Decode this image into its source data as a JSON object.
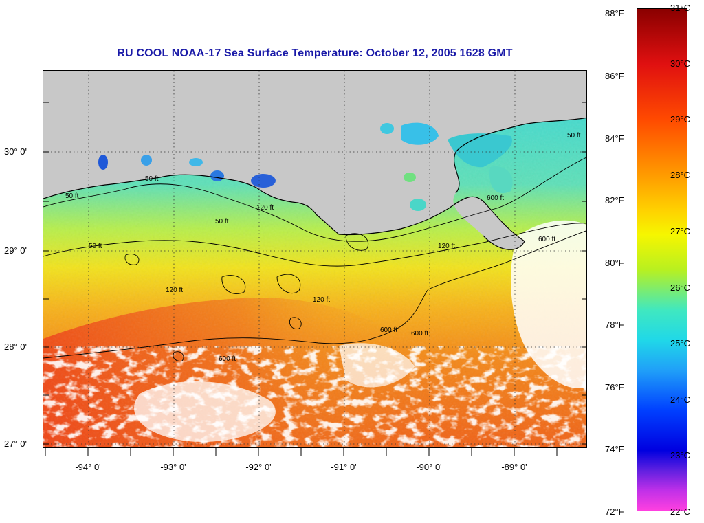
{
  "title": "RU COOL  NOAA-17  Sea Surface Temperature:  October 12, 2005 1628 GMT",
  "map": {
    "lat_labels": [
      "30° 0'",
      "29° 0'",
      "28° 0'",
      "27° 0'"
    ],
    "lon_labels": [
      "-94° 0'",
      "-93° 0'",
      "-92° 0'",
      "-91° 0'",
      "-90° 0'",
      "-89° 0'"
    ],
    "contour_labels": [
      "50 ft",
      "50 ft",
      "50 ft",
      "50 ft",
      "50 ft",
      "120 ft",
      "120 ft",
      "120 ft",
      "120 ft",
      "600 ft",
      "600 ft",
      "600 ft",
      "600 ft",
      "600 ft"
    ],
    "colors": {
      "land": "#c8c8c8",
      "cloud": "#ffffff",
      "contour": "#000000"
    }
  },
  "colorbar": {
    "fahrenheit": [
      "88°F",
      "86°F",
      "84°F",
      "82°F",
      "80°F",
      "78°F",
      "76°F",
      "74°F",
      "72°F"
    ],
    "celsius": [
      "31°C",
      "30°C",
      "29°C",
      "28°C",
      "27°C",
      "26°C",
      "25°C",
      "24°C",
      "23°C",
      "22°C"
    ],
    "range_c": [
      22,
      31
    ],
    "range_f": [
      72,
      88
    ]
  }
}
